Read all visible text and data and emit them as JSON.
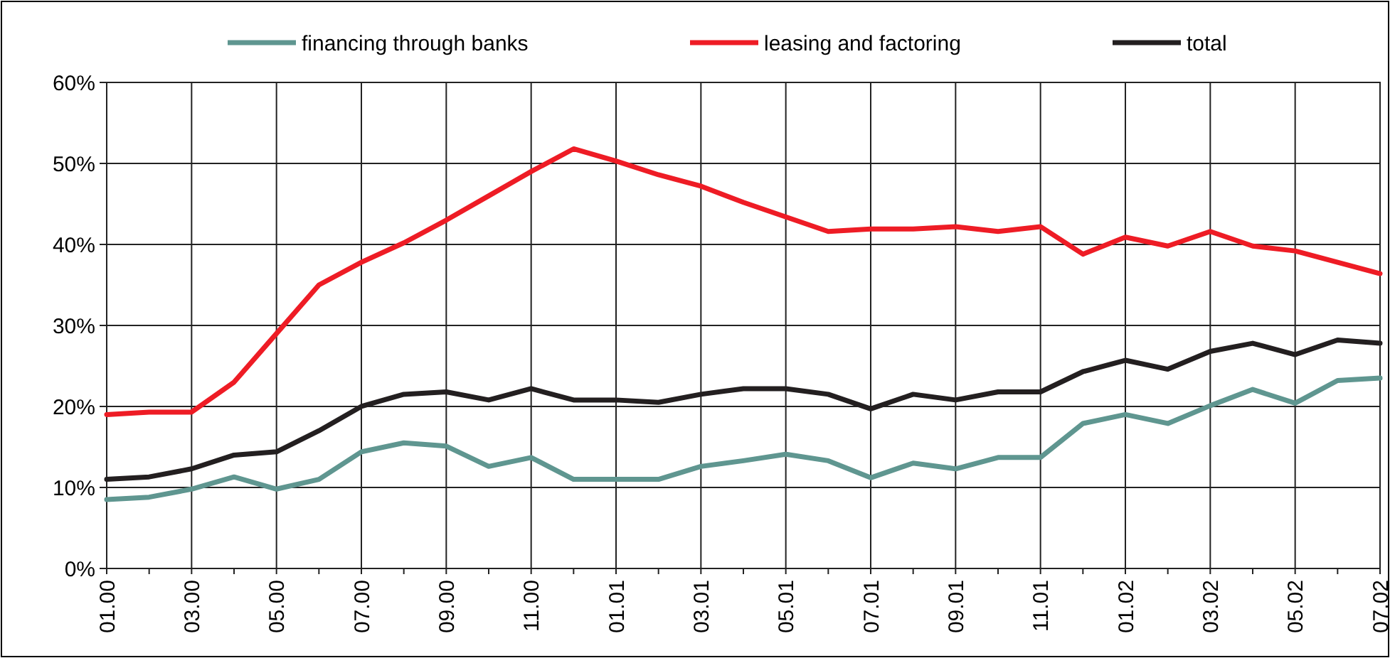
{
  "chart_data": {
    "type": "line",
    "categories": [
      "01.00",
      null,
      "03.00",
      null,
      "05.00",
      null,
      "07.00",
      null,
      "09.00",
      null,
      "11.00",
      null,
      "01.01",
      null,
      "03.01",
      null,
      "05.01",
      null,
      "07.01",
      null,
      "09.01",
      null,
      "11.01",
      null,
      "01.02",
      null,
      "03.02",
      null,
      "05.02",
      null,
      "07.02"
    ],
    "series": [
      {
        "name": "financing through banks",
        "color": "#5f9690",
        "values": [
          8.5,
          8.8,
          9.8,
          11.3,
          9.8,
          11,
          14.4,
          15.5,
          15.1,
          12.6,
          13.7,
          11,
          11,
          11,
          12.6,
          13.3,
          14.1,
          13.3,
          11.2,
          13,
          12.3,
          13.7,
          13.7,
          17.9,
          19,
          17.9,
          20.1,
          22.1,
          20.4,
          23.2,
          23.5
        ]
      },
      {
        "name": "leasing and factoring",
        "color": "#ee1c25",
        "values": [
          19,
          19.3,
          19.3,
          23,
          29,
          35,
          37.8,
          40.2,
          43,
          46,
          49,
          51.8,
          50.3,
          48.6,
          47.2,
          45.2,
          43.4,
          41.6,
          41.9,
          41.9,
          42.2,
          41.6,
          42.2,
          38.8,
          40.9,
          39.8,
          41.6,
          39.8,
          39.2,
          37.8,
          36.4
        ]
      },
      {
        "name": "total",
        "color": "#231f20",
        "values": [
          11,
          11.3,
          12.3,
          14,
          14.4,
          17,
          20,
          21.5,
          21.8,
          20.8,
          22.2,
          20.8,
          20.8,
          20.5,
          21.5,
          22.2,
          22.2,
          21.5,
          19.7,
          21.5,
          20.8,
          21.8,
          21.8,
          24.3,
          25.7,
          24.6,
          26.8,
          27.8,
          26.4,
          28.2,
          27.8
        ]
      }
    ],
    "ylim": [
      0,
      60
    ],
    "yticks": [
      {
        "value": 0,
        "label": "0%"
      },
      {
        "value": 10,
        "label": "10%"
      },
      {
        "value": 20,
        "label": "20%"
      },
      {
        "value": 30,
        "label": "30%"
      },
      {
        "value": 40,
        "label": "40%"
      },
      {
        "value": 50,
        "label": "50%"
      },
      {
        "value": 60,
        "label": "60%"
      }
    ],
    "grid": true,
    "legend": "top",
    "marker": "none",
    "line_style": "solid"
  }
}
